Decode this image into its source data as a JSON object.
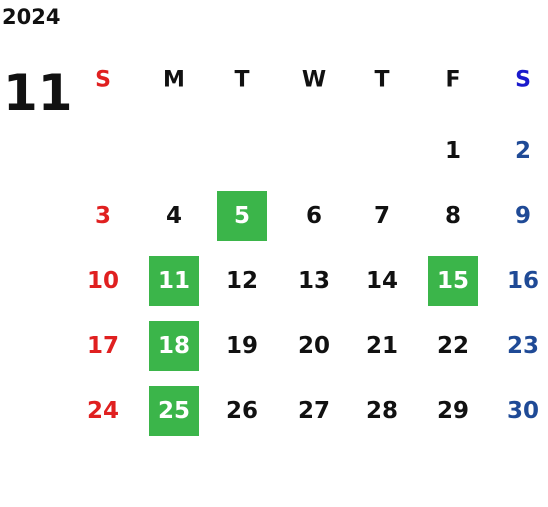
{
  "year": "2024",
  "month": "11",
  "weekdays": [
    "S",
    "M",
    "T",
    "W",
    "T",
    "F",
    "S"
  ],
  "weeks": [
    [
      null,
      null,
      null,
      null,
      null,
      1,
      2
    ],
    [
      3,
      4,
      5,
      6,
      7,
      8,
      9
    ],
    [
      10,
      11,
      12,
      13,
      14,
      15,
      16
    ],
    [
      17,
      18,
      19,
      20,
      21,
      22,
      23
    ],
    [
      24,
      25,
      26,
      27,
      28,
      29,
      30
    ]
  ],
  "highlighted": [
    5,
    11,
    15,
    18,
    25
  ],
  "colors": {
    "sunday": "#e02020",
    "saturday_header": "#1a1acc",
    "saturday": "#1f4a96",
    "weekday": "#111111",
    "highlight": "#3bb54a",
    "highlight_text": "#ffffff"
  }
}
